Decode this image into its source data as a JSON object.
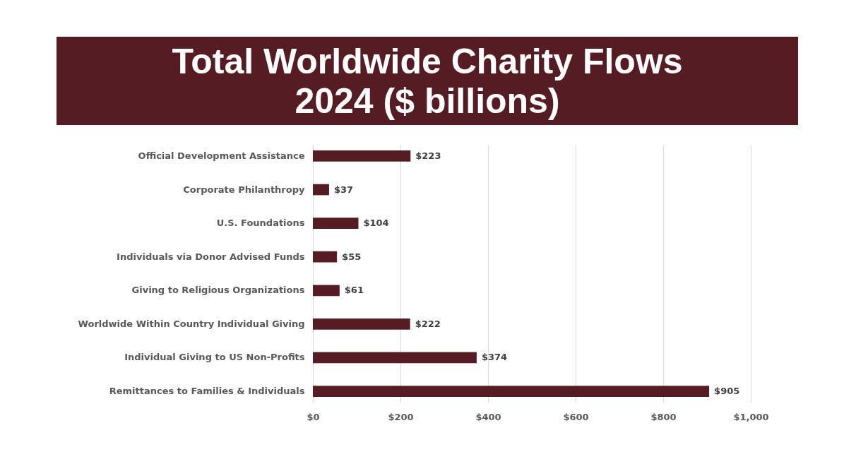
{
  "chart_data": {
    "type": "bar",
    "orientation": "horizontal",
    "title": "Total Worldwide Charity Flows 2024 ($ billions)",
    "categories": [
      "Official Development Assistance",
      "Corporate Philanthropy",
      "U.S. Foundations",
      "Individuals via Donor Advised Funds",
      "Giving to Religious Organizations",
      "Worldwide Within Country Individual Giving",
      "Individual Giving to US Non-Profits",
      "Remittances to Families & Individuals"
    ],
    "values": [
      223,
      37,
      104,
      55,
      61,
      222,
      374,
      905
    ],
    "value_labels": [
      "$223",
      "$37",
      "$104",
      "$55",
      "$61",
      "$222",
      "$374",
      "$905"
    ],
    "color": "#561c24",
    "xlim": [
      0,
      1000
    ],
    "xticks": [
      {
        "value": 0,
        "label": "$0"
      },
      {
        "value": 200,
        "label": "$200"
      },
      {
        "value": 400,
        "label": "$400"
      },
      {
        "value": 600,
        "label": "$600"
      },
      {
        "value": 800,
        "label": "$800"
      },
      {
        "value": 1000,
        "label": "$1,000"
      }
    ],
    "grid": "x"
  }
}
